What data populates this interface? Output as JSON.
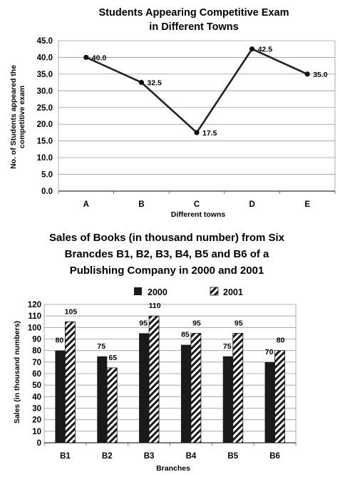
{
  "chart_data": [
    {
      "type": "line",
      "title_lines": [
        "Students Appearing Competitive Exam",
        "in Different Towns"
      ],
      "xlabel": "Different towns",
      "ylabel_lines": [
        "No. of Students appeared the",
        "competitive exam"
      ],
      "categories": [
        "A",
        "B",
        "C",
        "D",
        "E"
      ],
      "values": [
        40.0,
        32.5,
        17.5,
        42.5,
        35.0
      ],
      "labels": [
        "40.0",
        "32.5",
        "17.5",
        "42.5",
        "35.0"
      ],
      "ylim": [
        0,
        45
      ],
      "yticks": [
        "0.0",
        "5.0",
        "10.0",
        "15.0",
        "20.0",
        "25.0",
        "30.0",
        "35.0",
        "40.0",
        "45.0"
      ],
      "grid": true,
      "line_color": "#222222"
    },
    {
      "type": "bar",
      "title_lines": [
        "Sales of Books (in thousand number) from Six",
        "Brancdes B1, B2, B3, B4, B5 and B6 of a",
        "Publishing Company in 2000 and 2001"
      ],
      "xlabel": "Branches",
      "ylabel": "Sales (in thousand numbers)",
      "categories": [
        "B1",
        "B2",
        "B3",
        "B4",
        "B5",
        "B6"
      ],
      "series": [
        {
          "name": "2000",
          "values": [
            80,
            75,
            95,
            85,
            75,
            70
          ],
          "fill": "solid",
          "color": "#1a1a1a"
        },
        {
          "name": "2001",
          "values": [
            105,
            65,
            110,
            95,
            95,
            80
          ],
          "fill": "hatched",
          "color": "#1a1a1a"
        }
      ],
      "ylim": [
        0,
        120
      ],
      "yticks": [
        "0",
        "10",
        "20",
        "30",
        "40",
        "50",
        "60",
        "70",
        "80",
        "90",
        "100",
        "110",
        "120"
      ],
      "grid": true,
      "legend_position": "top"
    }
  ]
}
